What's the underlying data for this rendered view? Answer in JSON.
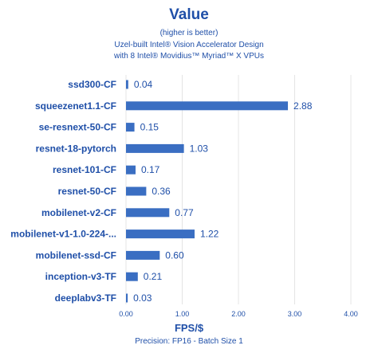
{
  "chart_data": {
    "type": "bar",
    "orientation": "horizontal",
    "title": "Value",
    "subtitle_lines": [
      "(higher is better)",
      "Uzel-built Intel® Vision Accelerator Design",
      "with 8 Intel® Movidius™ Myriad™ X VPUs"
    ],
    "xlabel": "FPS/$",
    "footnote": "Precision: FP16 - Batch Size 1",
    "categories": [
      "ssd300-CF",
      "squeezenet1.1-CF",
      "se-resnext-50-CF",
      "resnet-18-pytorch",
      "resnet-101-CF",
      "resnet-50-CF",
      "mobilenet-v2-CF",
      "mobilenet-v1-1.0-224-...",
      "mobilenet-ssd-CF",
      "inception-v3-TF",
      "deeplabv3-TF"
    ],
    "values": [
      0.04,
      2.88,
      0.15,
      1.03,
      0.17,
      0.36,
      0.77,
      1.22,
      0.6,
      0.21,
      0.03
    ],
    "value_labels": [
      "0.04",
      "2.88",
      "0.15",
      "1.03",
      "0.17",
      "0.36",
      "0.77",
      "1.22",
      "0.60",
      "0.21",
      "0.03"
    ],
    "xlim": [
      0,
      4
    ],
    "ticks": [
      0,
      1,
      2,
      3,
      4
    ],
    "tick_labels": [
      "0.00",
      "1.00",
      "2.00",
      "3.00",
      "4.00"
    ],
    "grid": "vertical",
    "legend": "none",
    "colors": {
      "bar": "#3a6ec2",
      "text": "#1f4fa8",
      "grid": "#e4e4e4"
    }
  }
}
